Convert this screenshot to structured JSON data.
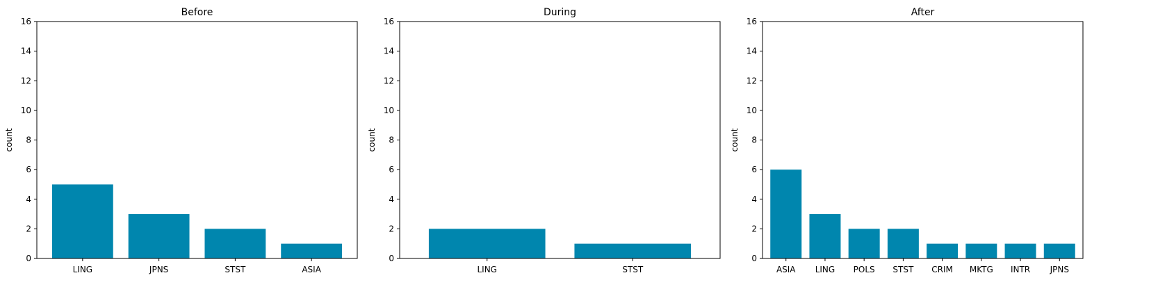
{
  "chart_data": [
    {
      "type": "bar",
      "title": "Before",
      "xlabel": "",
      "ylabel": "count",
      "ylim": [
        0,
        16
      ],
      "yticks": [
        0,
        2,
        4,
        6,
        8,
        10,
        12,
        14,
        16
      ],
      "categories": [
        "LING",
        "JPNS",
        "STST",
        "ASIA"
      ],
      "values": [
        5,
        3,
        2,
        1
      ],
      "color": "#0086AE",
      "grid": false
    },
    {
      "type": "bar",
      "title": "During",
      "xlabel": "",
      "ylabel": "count",
      "ylim": [
        0,
        16
      ],
      "yticks": [
        0,
        2,
        4,
        6,
        8,
        10,
        12,
        14,
        16
      ],
      "categories": [
        "LING",
        "STST"
      ],
      "values": [
        2,
        1
      ],
      "color": "#0086AE",
      "grid": false
    },
    {
      "type": "bar",
      "title": "After",
      "xlabel": "",
      "ylabel": "count",
      "ylim": [
        0,
        16
      ],
      "yticks": [
        0,
        2,
        4,
        6,
        8,
        10,
        12,
        14,
        16
      ],
      "categories": [
        "ASIA",
        "LING",
        "POLS",
        "STST",
        "CRIM",
        "MKTG",
        "INTR",
        "JPNS"
      ],
      "values": [
        6,
        3,
        2,
        2,
        1,
        1,
        1,
        1
      ],
      "color": "#0086AE",
      "grid": false
    }
  ]
}
